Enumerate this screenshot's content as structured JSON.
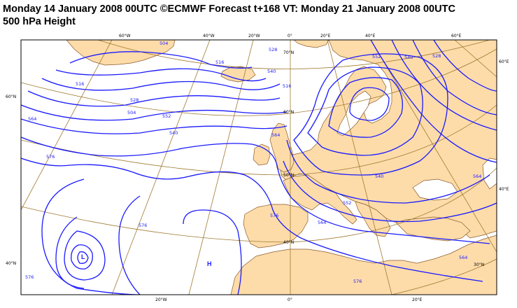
{
  "header": {
    "line1": "Monday 14 January 2008 00UTC ©ECMWF Forecast t+168 VT: Monday 21 January 2008 00UTC",
    "line2": "500 hPa Height"
  },
  "colors": {
    "land": "#fddcaa",
    "coast": "#8b5a2b",
    "contour": "#1a1aff",
    "graticule": "#a07a30",
    "frame": "#000000"
  },
  "top_lon_labels": [
    "60°W",
    "40°W",
    "20°W",
    "0°",
    "20°E",
    "40°E",
    "60°E"
  ],
  "bottom_lon_labels": [
    "20°W",
    "0°",
    "20°E"
  ],
  "left_lat_labels": [
    "60°N",
    "40°N"
  ],
  "right_lat_labels": [
    "60°E",
    "40°E"
  ],
  "interior_lat_labels": [
    "70°N",
    "60°N",
    "50°N",
    "40°N",
    "30°N"
  ],
  "contour_labels": [
    "528",
    "516",
    "504",
    "552",
    "540",
    "528",
    "516",
    "504",
    "540",
    "552",
    "564",
    "576",
    "576",
    "576",
    "564",
    "552",
    "540",
    "528",
    "540",
    "552",
    "564",
    "564",
    "576",
    "564",
    "576",
    "516"
  ],
  "centers": {
    "low": "L",
    "high": "H"
  }
}
